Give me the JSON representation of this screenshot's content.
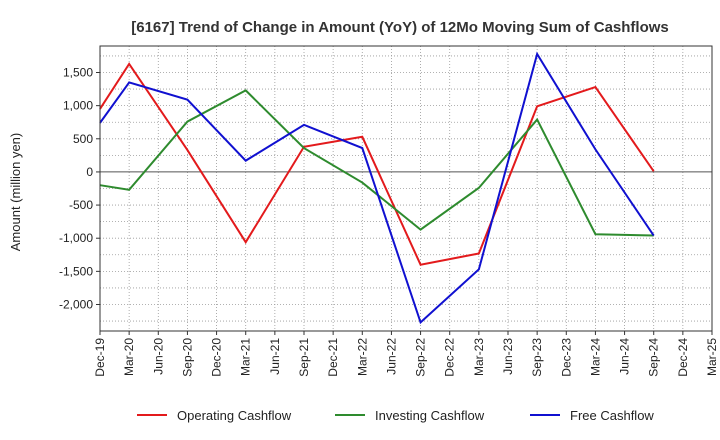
{
  "chart_data": {
    "type": "line",
    "title": "[6167]  Trend of Change in Amount (YoY) of 12Mo Moving Sum of Cashflows",
    "xlabel": "",
    "ylabel": "Amount (million yen)",
    "ylim": [
      -2400,
      1900
    ],
    "yticks": [
      -2000,
      -1500,
      -1000,
      -500,
      0,
      500,
      1000,
      1500
    ],
    "ytick_labels": [
      "-2,000",
      "-1,500",
      "-1,000",
      "-500",
      "0",
      "500",
      "1,000",
      "1,500"
    ],
    "categories": [
      "Dec-19",
      "Mar-20",
      "Jun-20",
      "Sep-20",
      "Dec-20",
      "Mar-21",
      "Jun-21",
      "Sep-21",
      "Dec-21",
      "Mar-22",
      "Jun-22",
      "Sep-22",
      "Dec-22",
      "Mar-23",
      "Jun-23",
      "Sep-23",
      "Dec-23",
      "Mar-24",
      "Jun-24",
      "Sep-24",
      "Dec-24",
      "Mar-25"
    ],
    "grid": true,
    "legend_position": "bottom",
    "series": [
      {
        "name": "Operating Cashflow",
        "color": "#e31a1c",
        "values": [
          950,
          1630,
          null,
          330,
          null,
          -1060,
          null,
          380,
          null,
          530,
          null,
          -1400,
          null,
          -1230,
          null,
          990,
          null,
          1280,
          null,
          10,
          null,
          null
        ]
      },
      {
        "name": "Investing Cashflow",
        "color": "#2e8b2e",
        "values": [
          -200,
          -270,
          null,
          760,
          null,
          1230,
          null,
          360,
          null,
          -160,
          null,
          -870,
          null,
          -240,
          null,
          790,
          null,
          -940,
          null,
          -960,
          null,
          null
        ]
      },
      {
        "name": "Free Cashflow",
        "color": "#1010d0",
        "values": [
          740,
          1350,
          null,
          1090,
          null,
          170,
          null,
          710,
          null,
          360,
          null,
          -2270,
          null,
          -1470,
          null,
          1780,
          null,
          340,
          null,
          -960,
          null,
          null
        ]
      }
    ]
  }
}
